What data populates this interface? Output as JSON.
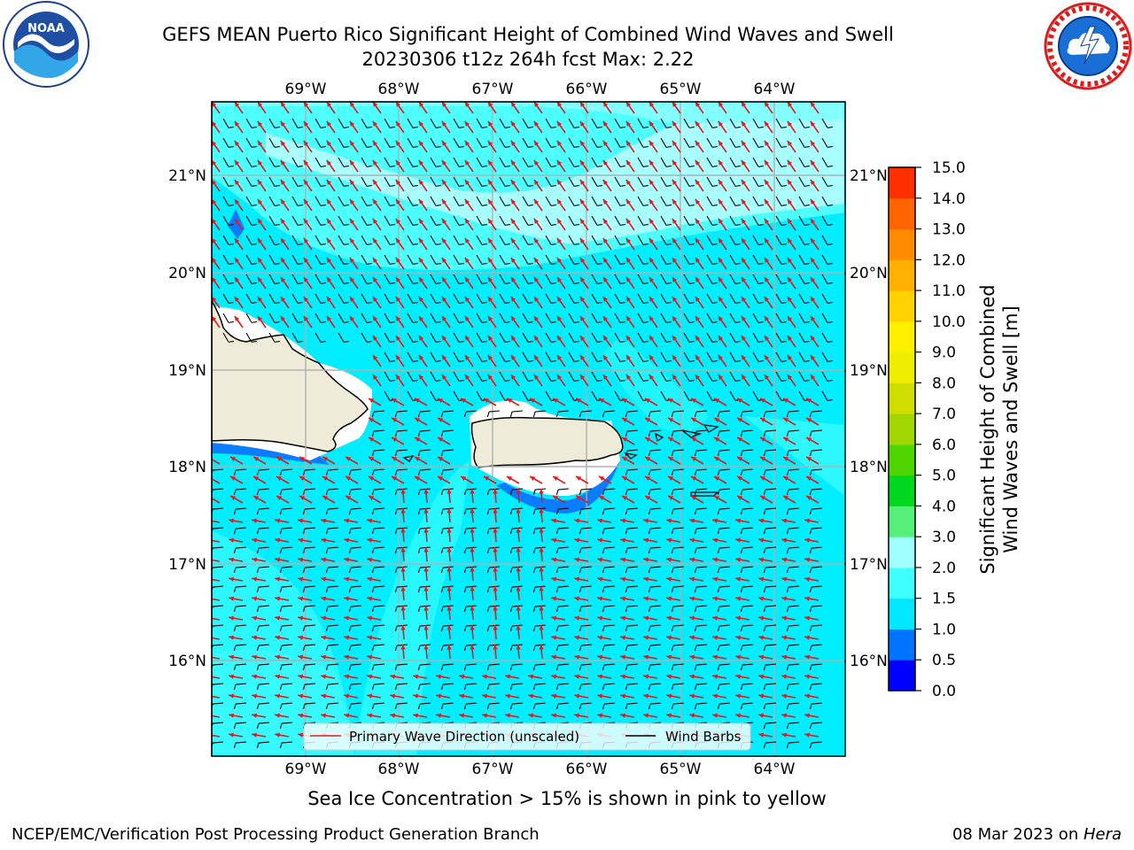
{
  "title_line1": "GEFS MEAN Puerto Rico Significant Height of Combined Wind Waves and Swell",
  "title_line2": "20230306 t12z 264h fcst   Max: 2.22",
  "logos": {
    "left": "noaa-logo",
    "right": "nws-logo",
    "left_text": "NOAA"
  },
  "lon_labels": [
    "69°W",
    "68°W",
    "67°W",
    "66°W",
    "65°W",
    "64°W"
  ],
  "lat_labels": [
    "21°N",
    "20°N",
    "19°N",
    "18°N",
    "17°N",
    "16°N"
  ],
  "colorbar": {
    "label_line1": "Significant Height of Combined",
    "label_line2": "Wind Waves and Swell [m]",
    "ticks": [
      "0.0",
      "0.5",
      "1.0",
      "1.5",
      "2.0",
      "3.0",
      "4.0",
      "5.0",
      "6.0",
      "7.0",
      "8.0",
      "9.0",
      "10.0",
      "11.0",
      "12.0",
      "13.0",
      "14.0",
      "15.0"
    ],
    "colors": [
      "#0000ff",
      "#0073ff",
      "#00e8ff",
      "#40ffff",
      "#a0ffff",
      "#55f07a",
      "#00d820",
      "#4fd600",
      "#a2d600",
      "#cede00",
      "#eeee00",
      "#fff000",
      "#ffd200",
      "#ffb000",
      "#ff8c00",
      "#ff6400",
      "#ff3000",
      "#ff0000"
    ]
  },
  "legend": {
    "wave_dir": "Primary Wave Direction (unscaled)",
    "wind_barbs": "Wind Barbs",
    "wave_color": "#e8161b",
    "barb_color": "#000000"
  },
  "note": "Sea Ice Concentration > 15% is shown in pink to yellow",
  "footer_left": "NCEP/EMC/Verification Post Processing Product Generation Branch",
  "footer_right_date": "08 Mar 2023 on ",
  "footer_right_host": "Hera"
}
